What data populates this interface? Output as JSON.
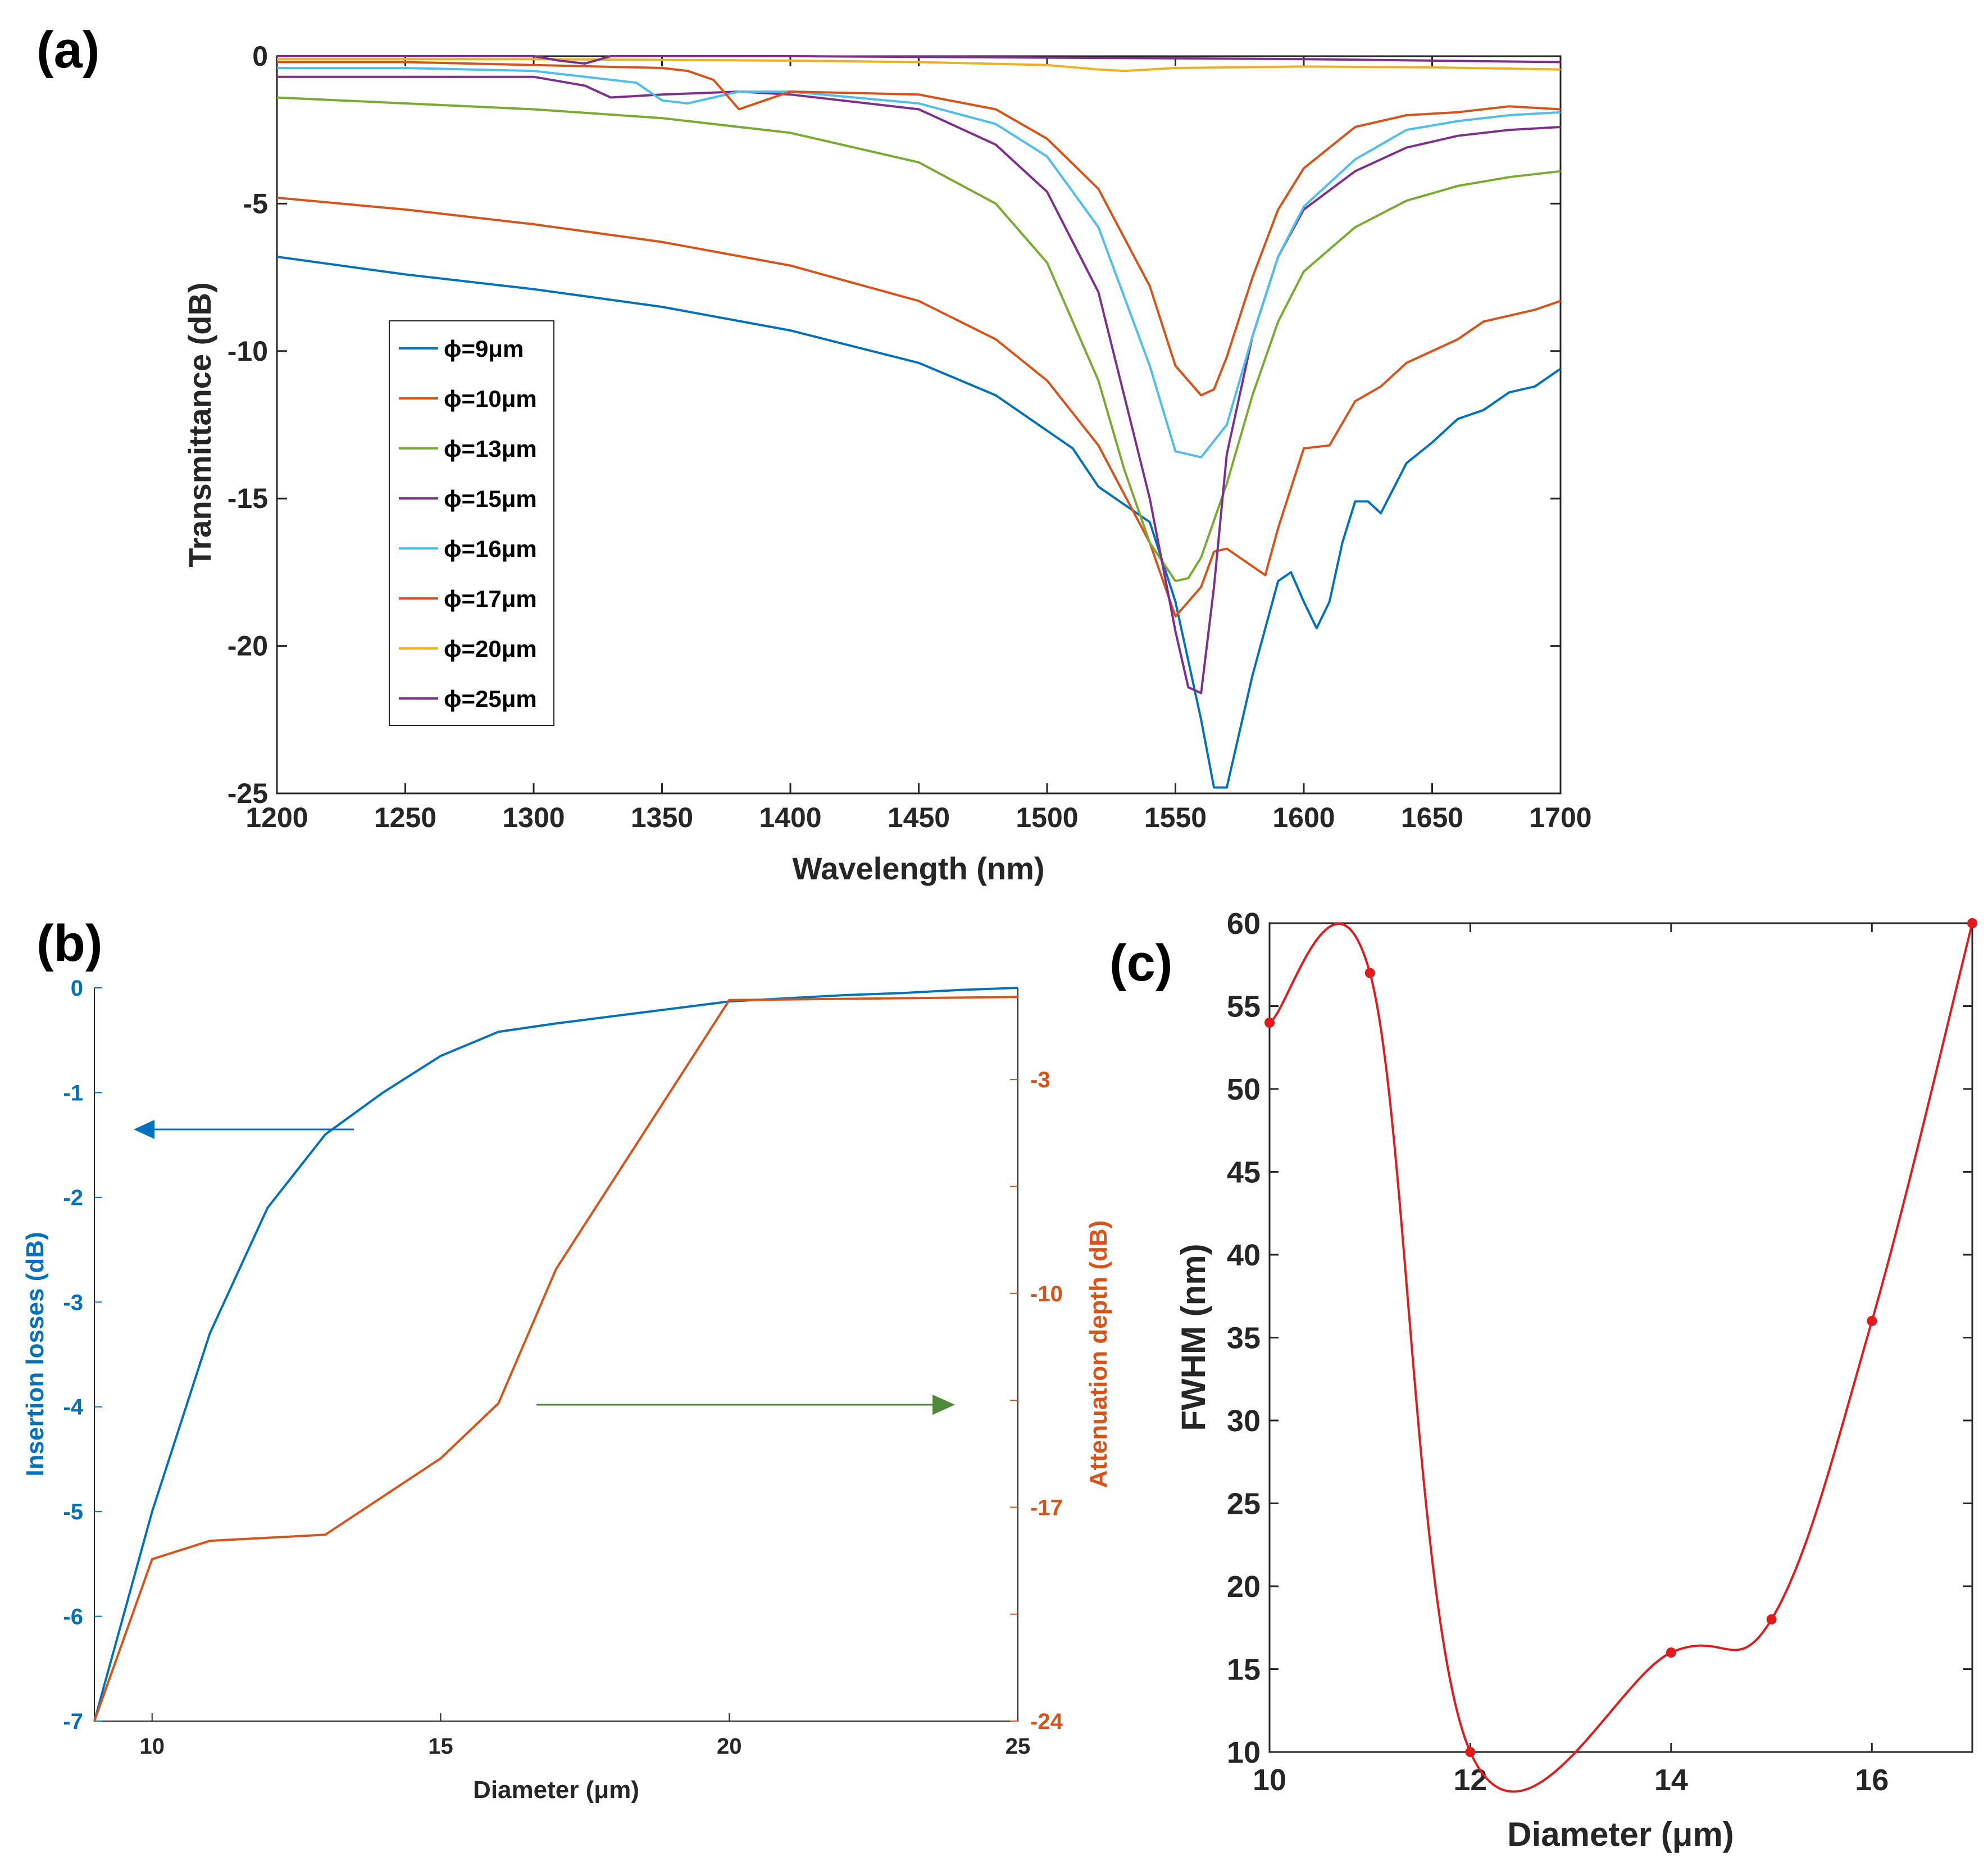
{
  "chart_data": [
    {
      "panel": "(a)",
      "type": "line",
      "title": "",
      "xlabel": "Wavelength (nm)",
      "ylabel": "Transmittance (dB)",
      "xlim": [
        1200,
        1700
      ],
      "ylim": [
        -25,
        0
      ],
      "xticks": [
        1200,
        1250,
        1300,
        1350,
        1400,
        1450,
        1500,
        1550,
        1600,
        1650,
        1700
      ],
      "yticks": [
        0,
        -5,
        -10,
        -15,
        -20,
        -25
      ],
      "legend_position": "left-center",
      "series": [
        {
          "name": "ϕ=9μm",
          "color": "#0072BD",
          "x": [
            1200,
            1250,
            1300,
            1350,
            1400,
            1450,
            1480,
            1500,
            1510,
            1520,
            1530,
            1540,
            1550,
            1560,
            1565,
            1570,
            1580,
            1590,
            1595,
            1600,
            1605,
            1610,
            1615,
            1620,
            1625,
            1630,
            1640,
            1650,
            1660,
            1670,
            1680,
            1690,
            1700
          ],
          "y": [
            -6.8,
            -7.4,
            -7.9,
            -8.5,
            -9.3,
            -10.4,
            -11.5,
            -12.7,
            -13.3,
            -14.6,
            -15.2,
            -15.8,
            -18.5,
            -22.5,
            -24.8,
            -24.8,
            -21.0,
            -17.8,
            -17.5,
            -18.5,
            -19.4,
            -18.5,
            -16.5,
            -15.1,
            -15.1,
            -15.5,
            -13.8,
            -13.1,
            -12.3,
            -12.0,
            -11.4,
            -11.2,
            -10.6
          ]
        },
        {
          "name": "ϕ=10μm",
          "color": "#D95319",
          "x": [
            1200,
            1250,
            1300,
            1350,
            1400,
            1450,
            1480,
            1500,
            1520,
            1540,
            1550,
            1560,
            1565,
            1570,
            1580,
            1585,
            1590,
            1600,
            1610,
            1620,
            1630,
            1640,
            1650,
            1660,
            1670,
            1680,
            1690,
            1700
          ],
          "y": [
            -4.8,
            -5.2,
            -5.7,
            -6.3,
            -7.1,
            -8.3,
            -9.6,
            -11.0,
            -13.2,
            -16.5,
            -19.0,
            -18.0,
            -16.8,
            -16.7,
            -17.3,
            -17.6,
            -16.0,
            -13.3,
            -13.2,
            -11.7,
            -11.2,
            -10.4,
            -10.0,
            -9.6,
            -9.0,
            -8.8,
            -8.6,
            -8.3
          ]
        },
        {
          "name": "ϕ=13μm",
          "color": "#77AC30",
          "x": [
            1200,
            1250,
            1300,
            1350,
            1400,
            1450,
            1480,
            1500,
            1520,
            1530,
            1540,
            1550,
            1555,
            1560,
            1570,
            1580,
            1590,
            1600,
            1620,
            1640,
            1660,
            1680,
            1700
          ],
          "y": [
            -1.4,
            -1.6,
            -1.8,
            -2.1,
            -2.6,
            -3.6,
            -5.0,
            -7.0,
            -11.0,
            -14.0,
            -16.5,
            -17.8,
            -17.7,
            -17.0,
            -14.5,
            -11.5,
            -9.0,
            -7.3,
            -5.8,
            -4.9,
            -4.4,
            -4.1,
            -3.9
          ]
        },
        {
          "name": "ϕ=15μm",
          "color": "#7E2F8E",
          "x": [
            1200,
            1250,
            1300,
            1320,
            1330,
            1350,
            1380,
            1400,
            1450,
            1480,
            1500,
            1520,
            1540,
            1550,
            1555,
            1560,
            1565,
            1570,
            1580,
            1590,
            1600,
            1620,
            1640,
            1660,
            1680,
            1700
          ],
          "y": [
            -0.7,
            -0.7,
            -0.7,
            -1.0,
            -1.4,
            -1.3,
            -1.2,
            -1.3,
            -1.8,
            -3.0,
            -4.6,
            -8.0,
            -15.0,
            -19.5,
            -21.4,
            -21.6,
            -18.0,
            -13.5,
            -9.5,
            -6.8,
            -5.2,
            -3.9,
            -3.1,
            -2.7,
            -2.5,
            -2.4
          ]
        },
        {
          "name": "ϕ=16μm",
          "color": "#4DBEEE",
          "x": [
            1200,
            1250,
            1300,
            1340,
            1350,
            1360,
            1370,
            1380,
            1400,
            1450,
            1480,
            1500,
            1520,
            1540,
            1550,
            1560,
            1570,
            1580,
            1590,
            1600,
            1620,
            1640,
            1660,
            1680,
            1700
          ],
          "y": [
            -0.4,
            -0.4,
            -0.5,
            -0.9,
            -1.5,
            -1.6,
            -1.4,
            -1.2,
            -1.2,
            -1.6,
            -2.3,
            -3.4,
            -5.8,
            -10.5,
            -13.4,
            -13.6,
            -12.5,
            -9.5,
            -6.8,
            -5.1,
            -3.5,
            -2.5,
            -2.2,
            -2.0,
            -1.9
          ]
        },
        {
          "name": "ϕ=17μm",
          "color": "#D95319",
          "x": [
            1200,
            1250,
            1300,
            1350,
            1360,
            1370,
            1375,
            1380,
            1390,
            1400,
            1450,
            1480,
            1500,
            1520,
            1540,
            1550,
            1560,
            1565,
            1570,
            1580,
            1590,
            1600,
            1620,
            1640,
            1660,
            1680,
            1700
          ],
          "y": [
            -0.2,
            -0.2,
            -0.3,
            -0.4,
            -0.5,
            -0.8,
            -1.3,
            -1.8,
            -1.5,
            -1.2,
            -1.3,
            -1.8,
            -2.8,
            -4.5,
            -7.8,
            -10.5,
            -11.5,
            -11.3,
            -10.2,
            -7.5,
            -5.2,
            -3.8,
            -2.4,
            -2.0,
            -1.9,
            -1.7,
            -1.8
          ]
        },
        {
          "name": "ϕ=20μm",
          "color": "#EDB120",
          "x": [
            1200,
            1300,
            1400,
            1450,
            1500,
            1520,
            1530,
            1540,
            1550,
            1600,
            1650,
            1700
          ],
          "y": [
            -0.1,
            -0.1,
            -0.15,
            -0.2,
            -0.3,
            -0.45,
            -0.5,
            -0.45,
            -0.4,
            -0.35,
            -0.38,
            -0.45
          ]
        },
        {
          "name": "ϕ=25μm",
          "color": "#7E2F8E",
          "x": [
            1200,
            1300,
            1310,
            1320,
            1330,
            1400,
            1500,
            1600,
            1650,
            1700
          ],
          "y": [
            0.0,
            0.0,
            -0.15,
            -0.25,
            0.0,
            0.0,
            -0.05,
            -0.1,
            -0.15,
            -0.2
          ]
        }
      ]
    },
    {
      "panel": "(b)",
      "type": "line",
      "title": "",
      "xlabel": "Diameter (μm)",
      "ylabel_left": "Insertion losses (dB)",
      "ylabel_right": "Attenuation depth (dB)",
      "xlim": [
        9,
        25
      ],
      "ylim_left": [
        -7,
        0
      ],
      "ylim_right": [
        -24,
        0
      ],
      "xticks": [
        10,
        15,
        20,
        25
      ],
      "yticks_left": [
        0,
        -1,
        -2,
        -3,
        -4,
        -5,
        -6,
        -7
      ],
      "yticks_right": [
        -3,
        -10,
        -17,
        -24
      ],
      "series": [
        {
          "name": "Insertion losses",
          "axis": "left",
          "color": "#0072BD",
          "x": [
            9,
            10,
            11,
            12,
            13,
            14,
            15,
            16,
            17,
            18,
            19,
            20,
            21,
            22,
            23,
            24,
            25
          ],
          "y": [
            -7.0,
            -5.0,
            -3.3,
            -2.1,
            -1.4,
            -1.0,
            -0.65,
            -0.42,
            -0.34,
            -0.27,
            -0.2,
            -0.13,
            -0.1,
            -0.07,
            -0.05,
            -0.02,
            0.0
          ]
        },
        {
          "name": "Attenuation depth",
          "axis": "right",
          "color": "#D95319",
          "x": [
            9,
            10,
            11,
            12,
            13,
            15,
            16,
            17,
            20,
            25
          ],
          "y": [
            -24.0,
            -18.7,
            -18.1,
            -18.0,
            -17.9,
            -15.4,
            -13.6,
            -9.2,
            -0.4,
            -0.3
          ]
        }
      ],
      "arrows": [
        {
          "direction": "left",
          "color": "#0072BD",
          "points_to": "Insertion losses axis"
        },
        {
          "direction": "right",
          "color": "#4E8A3A",
          "points_to": "Attenuation depth axis"
        }
      ]
    },
    {
      "panel": "(c)",
      "type": "line",
      "title": "",
      "xlabel": "Diameter (μm)",
      "ylabel": "FWHM (nm)",
      "xlim": [
        10,
        17
      ],
      "ylim": [
        10,
        60
      ],
      "xticks": [
        10,
        12,
        14,
        16
      ],
      "yticks": [
        10,
        15,
        20,
        25,
        30,
        35,
        40,
        45,
        50,
        55,
        60
      ],
      "series": [
        {
          "name": "FWHM",
          "color": "#E31A1C",
          "x": [
            10,
            11,
            12,
            14,
            15,
            16,
            17
          ],
          "y": [
            54,
            57,
            10,
            16,
            18,
            36,
            60
          ]
        }
      ]
    }
  ],
  "labels": {
    "a": "(a)",
    "b": "(b)",
    "c": "(c)"
  }
}
